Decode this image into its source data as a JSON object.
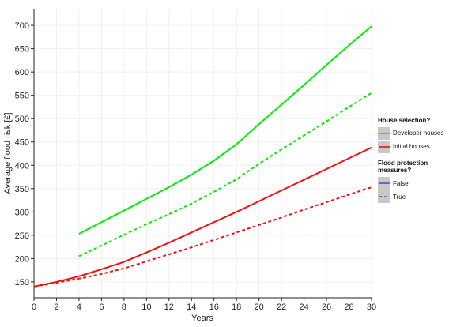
{
  "chart_data": {
    "type": "line",
    "xlabel": "Years",
    "ylabel": "Average flood risk [£]",
    "x": [
      0,
      2,
      4,
      6,
      8,
      10,
      12,
      14,
      16,
      18,
      20,
      22,
      24,
      26,
      28,
      30
    ],
    "series": [
      {
        "color": "#00ee00",
        "dash": "solid",
        "values": [
          null,
          null,
          253,
          278,
          303,
          328,
          353,
          380,
          410,
          445,
          488,
          530,
          572,
          615,
          657,
          698
        ]
      },
      {
        "color": "#00ee00",
        "dash": "dashed",
        "values": [
          null,
          null,
          205,
          228,
          251,
          274,
          295,
          318,
          343,
          370,
          403,
          434,
          464,
          494,
          525,
          555
        ]
      },
      {
        "color": "#ee1111",
        "dash": "solid",
        "values": [
          140,
          150,
          162,
          177,
          193,
          213,
          234,
          256,
          278,
          300,
          323,
          346,
          369,
          392,
          415,
          438
        ]
      },
      {
        "color": "#ee1111",
        "dash": "dashed",
        "values": [
          140,
          148,
          157,
          167,
          179,
          194,
          209,
          224,
          240,
          256,
          272,
          288,
          305,
          321,
          337,
          353
        ]
      }
    ],
    "xlim": [
      0,
      30
    ],
    "xticks": [
      0,
      2,
      4,
      6,
      8,
      10,
      12,
      14,
      16,
      18,
      20,
      22,
      24,
      26,
      28,
      30
    ],
    "ylim": [
      116,
      734
    ],
    "yticks": [
      150,
      200,
      250,
      300,
      350,
      400,
      450,
      500,
      550,
      600,
      650,
      700
    ],
    "grid": true,
    "legend": {
      "position": "right",
      "groups": [
        {
          "title": "House selection?",
          "items": [
            {
              "label": "Developer houses",
              "color": "#00ee00",
              "dash": "solid"
            },
            {
              "label": "Initial houses",
              "color": "#ee1111",
              "dash": "solid"
            }
          ]
        },
        {
          "title": "Flood protection measures?",
          "items": [
            {
              "label": "False",
              "color": "#3355ff",
              "dash": "solid"
            },
            {
              "label": "True",
              "color": "#3355ff",
              "dash": "dashed"
            }
          ]
        }
      ]
    }
  }
}
